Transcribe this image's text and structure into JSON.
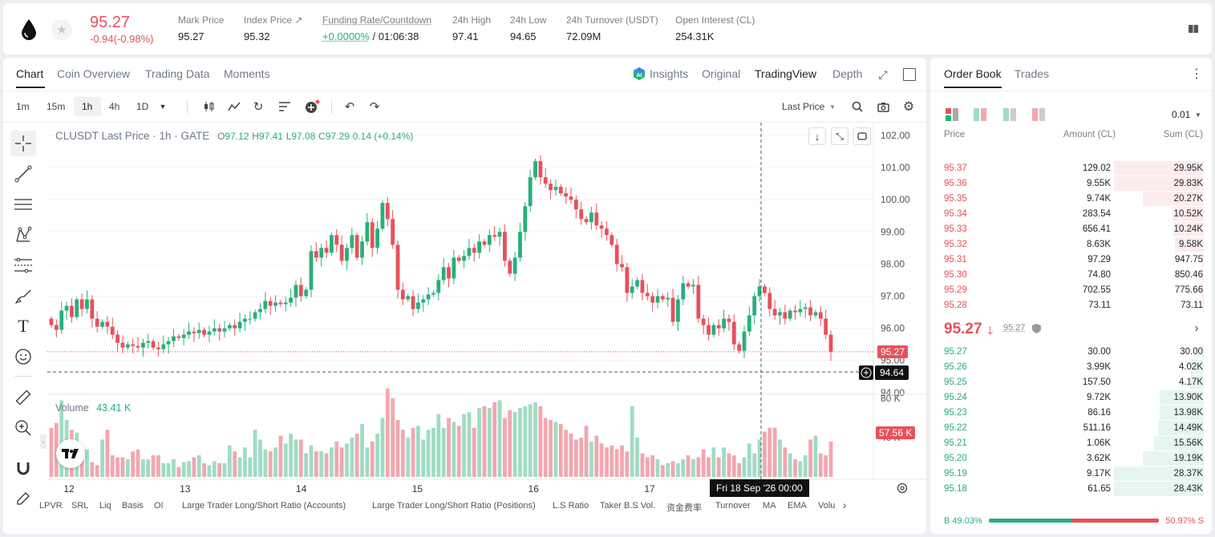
{
  "header": {
    "price": "95.27",
    "change": "-0.94(-0.98%)",
    "stats": [
      {
        "label": "Mark Price",
        "value": "95.27"
      },
      {
        "label": "Index Price ↗",
        "value": "95.32"
      },
      {
        "label": "Funding Rate/Countdown",
        "value": "+0.0000%",
        "value2": " / 01:06:38"
      },
      {
        "label": "24h High",
        "value": "97.41"
      },
      {
        "label": "24h Low",
        "value": "94.65"
      },
      {
        "label": "24h Turnover (USDT)",
        "value": "72.09M"
      },
      {
        "label": "Open Interest (CL)",
        "value": "254.31K"
      }
    ]
  },
  "chart_tabs": {
    "chart": "Chart",
    "coin_overview": "Coin Overview",
    "trading_data": "Trading Data",
    "moments": "Moments"
  },
  "view_tabs": {
    "insights": "Insights",
    "original": "Original",
    "tradingview": "TradingView",
    "depth": "Depth"
  },
  "intervals": [
    "1m",
    "15m",
    "1h",
    "4h",
    "1D"
  ],
  "last_price_select": "Last Price",
  "legend": {
    "symbol": "CLUSDT Last Price · 1h · GATE",
    "o_label": "O",
    "o": "97.12",
    "h_label": "H",
    "h": "97.41",
    "l_label": "L",
    "l": "97.08",
    "c_label": "C",
    "c": "97.29",
    "chg": "0.14 (+0.14%)"
  },
  "volume_legend": {
    "label": "Volume",
    "value": "43.41 K"
  },
  "price_axis": [
    "102.00",
    "101.00",
    "100.00",
    "99.00",
    "98.00",
    "97.00",
    "96.00",
    "95.00",
    "94.00"
  ],
  "price_tags": {
    "last": "95.27",
    "cursor": "94.64"
  },
  "volume_axis": [
    "80 K",
    "40 K"
  ],
  "volume_tag": "57.56 K",
  "time_axis": [
    "12",
    "13",
    "14",
    "15",
    "16",
    "17"
  ],
  "crosshair_time": "Fri 18 Sep '26   00:00",
  "indicators": [
    "LPVR",
    "SRL",
    "Liq",
    "Basis",
    "OI",
    "Large Trader Long/Short Ratio (Accounts)",
    "Large Trader Long/Short Ratio (Positions)",
    "L.S Ratio",
    "Taker B.S Vol.",
    "资金费率",
    "Turnover",
    "MA",
    "EMA",
    "Volu"
  ],
  "orderbook": {
    "tabs": {
      "book": "Order Book",
      "trades": "Trades"
    },
    "precision": "0.01",
    "headers": {
      "price": "Price",
      "amount": "Amount (CL)",
      "sum": "Sum (CL)"
    },
    "asks": [
      {
        "price": "95.37",
        "amount": "129.02",
        "sum": "29.95K",
        "depth": 1.0
      },
      {
        "price": "95.36",
        "amount": "9.55K",
        "sum": "29.83K",
        "depth": 0.996
      },
      {
        "price": "95.35",
        "amount": "9.74K",
        "sum": "20.27K",
        "depth": 0.68
      },
      {
        "price": "95.34",
        "amount": "283.54",
        "sum": "10.52K",
        "depth": 0.35
      },
      {
        "price": "95.33",
        "amount": "656.41",
        "sum": "10.24K",
        "depth": 0.34
      },
      {
        "price": "95.32",
        "amount": "8.63K",
        "sum": "9.58K",
        "depth": 0.32
      },
      {
        "price": "95.31",
        "amount": "97.29",
        "sum": "947.75",
        "depth": 0.03
      },
      {
        "price": "95.30",
        "amount": "74.80",
        "sum": "850.46",
        "depth": 0.03
      },
      {
        "price": "95.29",
        "amount": "702.55",
        "sum": "775.66",
        "depth": 0.026
      },
      {
        "price": "95.28",
        "amount": "73.11",
        "sum": "73.11",
        "depth": 0.003
      }
    ],
    "mid_price": "95.27",
    "mid_mark": "95.27",
    "bids": [
      {
        "price": "95.27",
        "amount": "30.00",
        "sum": "30.00",
        "depth": 0.001
      },
      {
        "price": "95.26",
        "amount": "3.99K",
        "sum": "4.02K",
        "depth": 0.14
      },
      {
        "price": "95.25",
        "amount": "157.50",
        "sum": "4.17K",
        "depth": 0.15
      },
      {
        "price": "95.24",
        "amount": "9.72K",
        "sum": "13.90K",
        "depth": 0.49
      },
      {
        "price": "95.23",
        "amount": "86.16",
        "sum": "13.98K",
        "depth": 0.49
      },
      {
        "price": "95.22",
        "amount": "511.16",
        "sum": "14.49K",
        "depth": 0.51
      },
      {
        "price": "95.21",
        "amount": "1.06K",
        "sum": "15.56K",
        "depth": 0.55
      },
      {
        "price": "95.20",
        "amount": "3.62K",
        "sum": "19.19K",
        "depth": 0.68
      },
      {
        "price": "95.19",
        "amount": "9.17K",
        "sum": "28.37K",
        "depth": 1.0
      },
      {
        "price": "95.18",
        "amount": "61.65",
        "sum": "28.43K",
        "depth": 1.0
      }
    ],
    "buy_ratio": "B 49.03%",
    "sell_ratio": "50.97% S",
    "buy_fraction": 0.4903
  },
  "colors": {
    "up": "#27b07a",
    "down": "#e8505b",
    "up_vol": "#9fdcc4",
    "down_vol": "#f2a7ae"
  }
}
